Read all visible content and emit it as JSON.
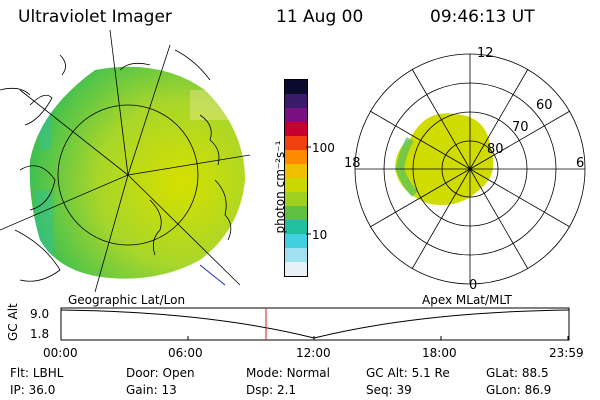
{
  "header": {
    "title": "Ultraviolet Imager",
    "date": "11 Aug 00",
    "time": "09:46:13 UT"
  },
  "colorbar": {
    "unit_label": "photon cm⁻²s⁻¹",
    "tick_labels": [
      "100",
      "10"
    ],
    "colors": [
      "#0b0b2e",
      "#3a1a6b",
      "#7a1080",
      "#c80030",
      "#f04010",
      "#ff8c00",
      "#f0c000",
      "#c8d800",
      "#a0d020",
      "#60c040",
      "#20c0a0",
      "#40d0e0",
      "#a0e0f0",
      "#e8f0f8"
    ]
  },
  "geo_panel": {
    "label": "Geographic Lat/Lon"
  },
  "polar_panel": {
    "label": "Apex MLat/MLT",
    "mlt_labels": [
      "12",
      "18",
      "6",
      "0"
    ],
    "lat_labels": [
      "60",
      "70",
      "80"
    ]
  },
  "altitude_plot": {
    "ylabel": "GC Alt",
    "yticks": [
      "9.0",
      "1.8"
    ],
    "xticks": [
      "00:00",
      "06:00",
      "12:00",
      "18:00",
      "23:59"
    ]
  },
  "footer": {
    "col1": [
      {
        "label": "Flt:",
        "value": "LBHL"
      },
      {
        "label": "IP:",
        "value": "36.0"
      }
    ],
    "col2": [
      {
        "label": "Door:",
        "value": "Open"
      },
      {
        "label": "Gain:",
        "value": "13"
      }
    ],
    "col3": [
      {
        "label": "Mode:",
        "value": "Normal"
      },
      {
        "label": "Dsp:",
        "value": "2.1"
      }
    ],
    "col4": [
      {
        "label": "GC Alt:",
        "value": "5.1 Re"
      },
      {
        "label": "Seq:",
        "value": "39"
      }
    ],
    "col5": [
      {
        "label": "GLat:",
        "value": "88.5"
      },
      {
        "label": "GLon:",
        "value": "86.9"
      }
    ]
  }
}
